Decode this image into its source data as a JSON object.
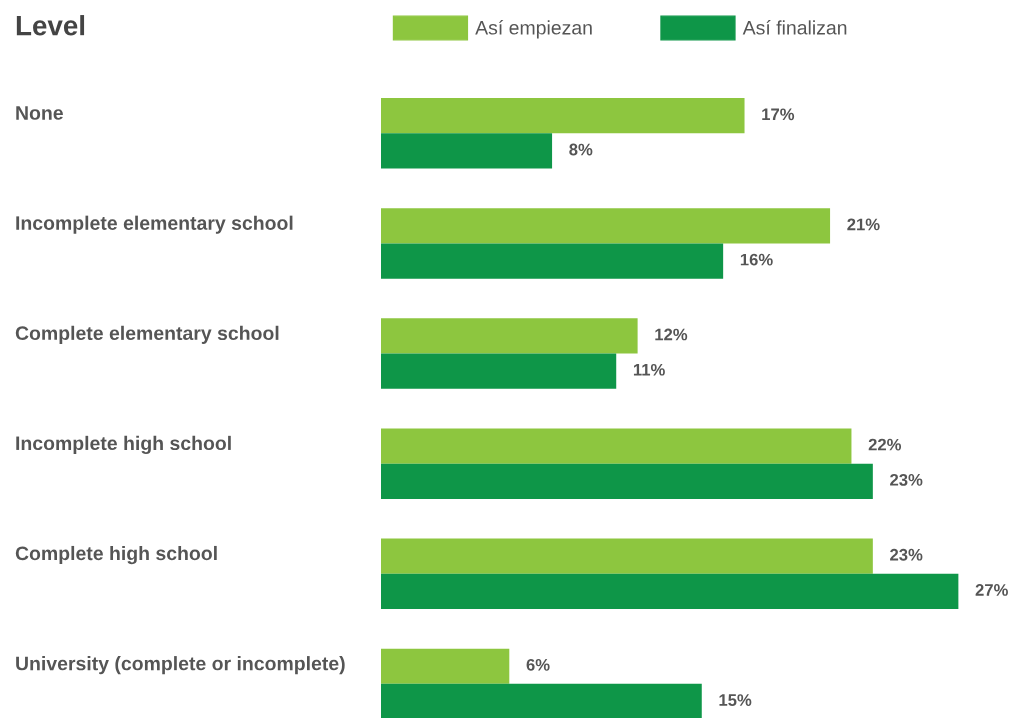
{
  "chart_data": {
    "type": "bar",
    "orientation": "horizontal",
    "title": "Level",
    "categories": [
      "None",
      "Incomplete elementary school",
      "Complete elementary school",
      "Incomplete high school",
      "Complete high school",
      "University (complete or incomplete)"
    ],
    "series": [
      {
        "name": "Así empiezan",
        "color": "#8dc63f",
        "values": [
          17,
          21,
          12,
          22,
          23,
          6
        ],
        "value_labels": [
          "17%",
          "21%",
          "12%",
          "22%",
          "23%",
          "6%"
        ]
      },
      {
        "name": "Así finalizan",
        "color": "#0e9648",
        "values": [
          8,
          16,
          11,
          23,
          27,
          15
        ],
        "value_labels": [
          "8%",
          "16%",
          "11%",
          "23%",
          "27%",
          "15%"
        ]
      }
    ],
    "legend": "top"
  }
}
